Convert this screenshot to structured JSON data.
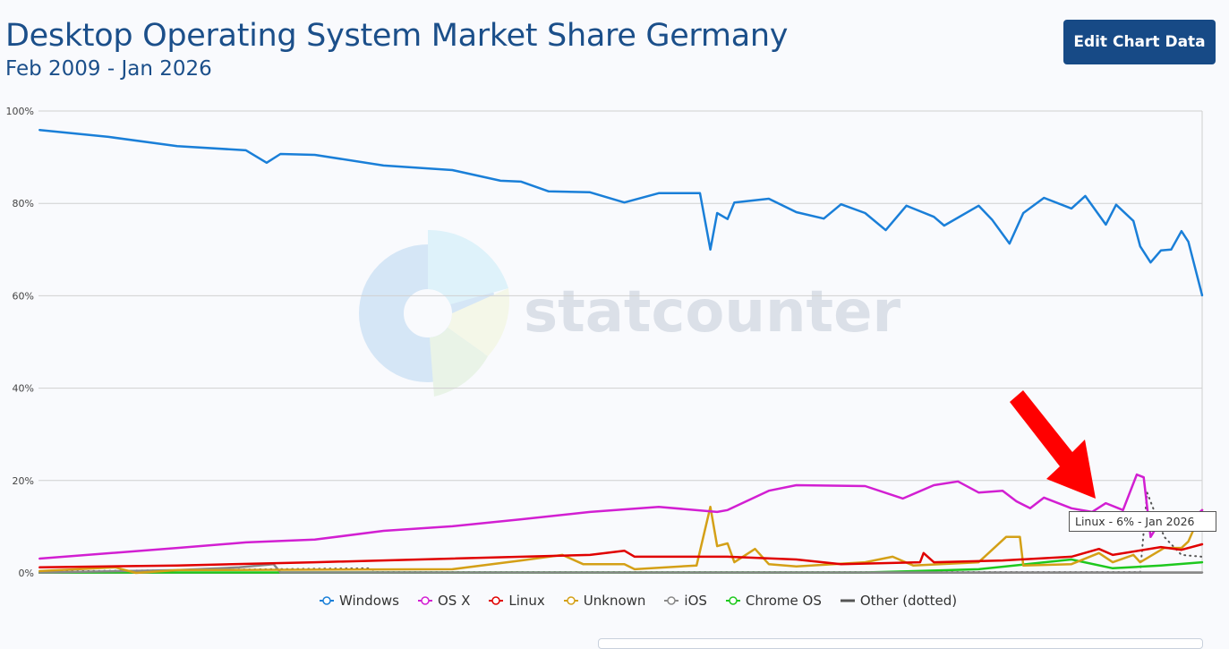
{
  "header": {
    "title": "Desktop Operating System Market Share Germany",
    "subtitle": "Feb 2009 - Jan 2026",
    "edit_button": "Edit Chart Data"
  },
  "watermark": "statcounter",
  "tooltip": "Linux - 6% - Jan 2026",
  "chart_data": {
    "type": "line",
    "title": "Desktop Operating System Market Share Germany",
    "subtitle": "Feb 2009 - Jan 2026",
    "x_unit": "decimal year",
    "xlim": [
      2009.083,
      2026.0
    ],
    "ylim": [
      0,
      100
    ],
    "yticks": [
      "0%",
      "20%",
      "40%",
      "60%",
      "80%",
      "100%"
    ],
    "grid": true,
    "legend_position": "bottom",
    "series": [
      {
        "name": "Windows",
        "color": "#1a7fd8",
        "points": [
          [
            2009.1,
            95.9
          ],
          [
            2010.1,
            94.4
          ],
          [
            2011.1,
            92.4
          ],
          [
            2012.1,
            91.5
          ],
          [
            2012.4,
            88.8
          ],
          [
            2012.6,
            90.7
          ],
          [
            2013.1,
            90.5
          ],
          [
            2014.1,
            88.2
          ],
          [
            2015.1,
            87.2
          ],
          [
            2015.8,
            84.9
          ],
          [
            2016.1,
            84.7
          ],
          [
            2016.5,
            82.6
          ],
          [
            2017.1,
            82.4
          ],
          [
            2017.6,
            80.2
          ],
          [
            2018.1,
            82.2
          ],
          [
            2018.7,
            82.2
          ],
          [
            2018.85,
            70
          ],
          [
            2018.95,
            77.9
          ],
          [
            2019.1,
            76.6
          ],
          [
            2019.2,
            80.2
          ],
          [
            2019.7,
            81
          ],
          [
            2020.1,
            78.1
          ],
          [
            2020.5,
            76.7
          ],
          [
            2020.75,
            79.8
          ],
          [
            2021.1,
            77.9
          ],
          [
            2021.4,
            74.2
          ],
          [
            2021.7,
            79.5
          ],
          [
            2022.1,
            77.1
          ],
          [
            2022.25,
            75.2
          ],
          [
            2022.75,
            79.5
          ],
          [
            2022.95,
            76.4
          ],
          [
            2023.2,
            71.3
          ],
          [
            2023.4,
            77.9
          ],
          [
            2023.7,
            81.2
          ],
          [
            2024.1,
            78.9
          ],
          [
            2024.3,
            81.6
          ],
          [
            2024.6,
            75.4
          ],
          [
            2024.75,
            79.7
          ],
          [
            2025.0,
            76.2
          ],
          [
            2025.1,
            70.7
          ],
          [
            2025.25,
            67.2
          ],
          [
            2025.4,
            69.8
          ],
          [
            2025.55,
            70
          ],
          [
            2025.7,
            74
          ],
          [
            2025.8,
            71.7
          ],
          [
            2026.0,
            60.1
          ]
        ]
      },
      {
        "name": "OS X",
        "color": "#d21fd2",
        "points": [
          [
            2009.1,
            3.1
          ],
          [
            2011.1,
            5.4
          ],
          [
            2012.1,
            6.6
          ],
          [
            2013.1,
            7.2
          ],
          [
            2014.1,
            9.1
          ],
          [
            2015.1,
            10.1
          ],
          [
            2016.1,
            11.6
          ],
          [
            2017.1,
            13.2
          ],
          [
            2018.1,
            14.3
          ],
          [
            2018.95,
            13.2
          ],
          [
            2019.1,
            13.6
          ],
          [
            2019.7,
            17.8
          ],
          [
            2020.1,
            19
          ],
          [
            2021.1,
            18.8
          ],
          [
            2021.65,
            16.1
          ],
          [
            2022.1,
            19
          ],
          [
            2022.45,
            19.8
          ],
          [
            2022.75,
            17.4
          ],
          [
            2023.1,
            17.8
          ],
          [
            2023.3,
            15.5
          ],
          [
            2023.5,
            14
          ],
          [
            2023.7,
            16.3
          ],
          [
            2024.1,
            14
          ],
          [
            2024.4,
            13.2
          ],
          [
            2024.6,
            15.1
          ],
          [
            2024.85,
            13.6
          ],
          [
            2025.05,
            21.3
          ],
          [
            2025.15,
            20.7
          ],
          [
            2025.25,
            7.8
          ],
          [
            2025.45,
            12.6
          ],
          [
            2025.7,
            9.7
          ],
          [
            2026.0,
            13.6
          ]
        ]
      },
      {
        "name": "Linux",
        "color": "#e00000",
        "points": [
          [
            2009.1,
            1.2
          ],
          [
            2011.1,
            1.6
          ],
          [
            2013.1,
            2.3
          ],
          [
            2015.1,
            3.1
          ],
          [
            2017.1,
            3.9
          ],
          [
            2017.6,
            4.8
          ],
          [
            2017.75,
            3.5
          ],
          [
            2019.1,
            3.5
          ],
          [
            2020.1,
            2.9
          ],
          [
            2020.75,
            1.9
          ],
          [
            2021.9,
            2.3
          ],
          [
            2021.95,
            4.3
          ],
          [
            2022.1,
            2.3
          ],
          [
            2023.1,
            2.7
          ],
          [
            2024.1,
            3.5
          ],
          [
            2024.5,
            5.2
          ],
          [
            2024.7,
            3.9
          ],
          [
            2025.4,
            5.6
          ],
          [
            2025.7,
            5
          ],
          [
            2026.0,
            6.2
          ]
        ]
      },
      {
        "name": "Unknown",
        "color": "#d4a017",
        "points": [
          [
            2009.1,
            0.4
          ],
          [
            2010.2,
            1.2
          ],
          [
            2010.5,
            0
          ],
          [
            2011.1,
            0.6
          ],
          [
            2015.1,
            0.8
          ],
          [
            2016.1,
            2.7
          ],
          [
            2016.7,
            3.9
          ],
          [
            2017.0,
            1.9
          ],
          [
            2017.6,
            1.9
          ],
          [
            2017.75,
            0.8
          ],
          [
            2018.65,
            1.6
          ],
          [
            2018.85,
            14.3
          ],
          [
            2018.95,
            5.8
          ],
          [
            2019.1,
            6.4
          ],
          [
            2019.2,
            2.3
          ],
          [
            2019.5,
            5.2
          ],
          [
            2019.7,
            1.9
          ],
          [
            2020.1,
            1.4
          ],
          [
            2021.1,
            2.3
          ],
          [
            2021.5,
            3.5
          ],
          [
            2021.8,
            1.6
          ],
          [
            2022.75,
            2.3
          ],
          [
            2023.15,
            7.8
          ],
          [
            2023.35,
            7.8
          ],
          [
            2023.4,
            1.6
          ],
          [
            2024.1,
            1.9
          ],
          [
            2024.5,
            4.3
          ],
          [
            2024.7,
            2.3
          ],
          [
            2025.0,
            3.9
          ],
          [
            2025.1,
            2.3
          ],
          [
            2025.45,
            5.4
          ],
          [
            2025.7,
            5.4
          ],
          [
            2025.8,
            6.8
          ],
          [
            2026.0,
            13.6
          ]
        ]
      },
      {
        "name": "iOS",
        "color": "#888888",
        "points": [
          [
            2009.1,
            0.1
          ],
          [
            2011.1,
            0.6
          ],
          [
            2012.0,
            1.2
          ],
          [
            2012.5,
            1.9
          ],
          [
            2012.6,
            0.1
          ],
          [
            2026.0,
            0.1
          ]
        ]
      },
      {
        "name": "Chrome OS",
        "color": "#1ec81e",
        "points": [
          [
            2009.1,
            0.1
          ],
          [
            2021.1,
            0.1
          ],
          [
            2022.75,
            0.8
          ],
          [
            2024.1,
            2.9
          ],
          [
            2024.7,
            1
          ],
          [
            2025.4,
            1.6
          ],
          [
            2026.0,
            2.3
          ]
        ]
      },
      {
        "name": "Other (dotted)",
        "color": "#555555",
        "dotted": true,
        "points": [
          [
            2009.1,
            0.3
          ],
          [
            2013.9,
            1
          ],
          [
            2014.0,
            0.2
          ],
          [
            2025.1,
            0.2
          ],
          [
            2025.2,
            17.4
          ],
          [
            2025.45,
            7.8
          ],
          [
            2025.7,
            3.9
          ],
          [
            2026.0,
            3.5
          ]
        ]
      }
    ]
  }
}
